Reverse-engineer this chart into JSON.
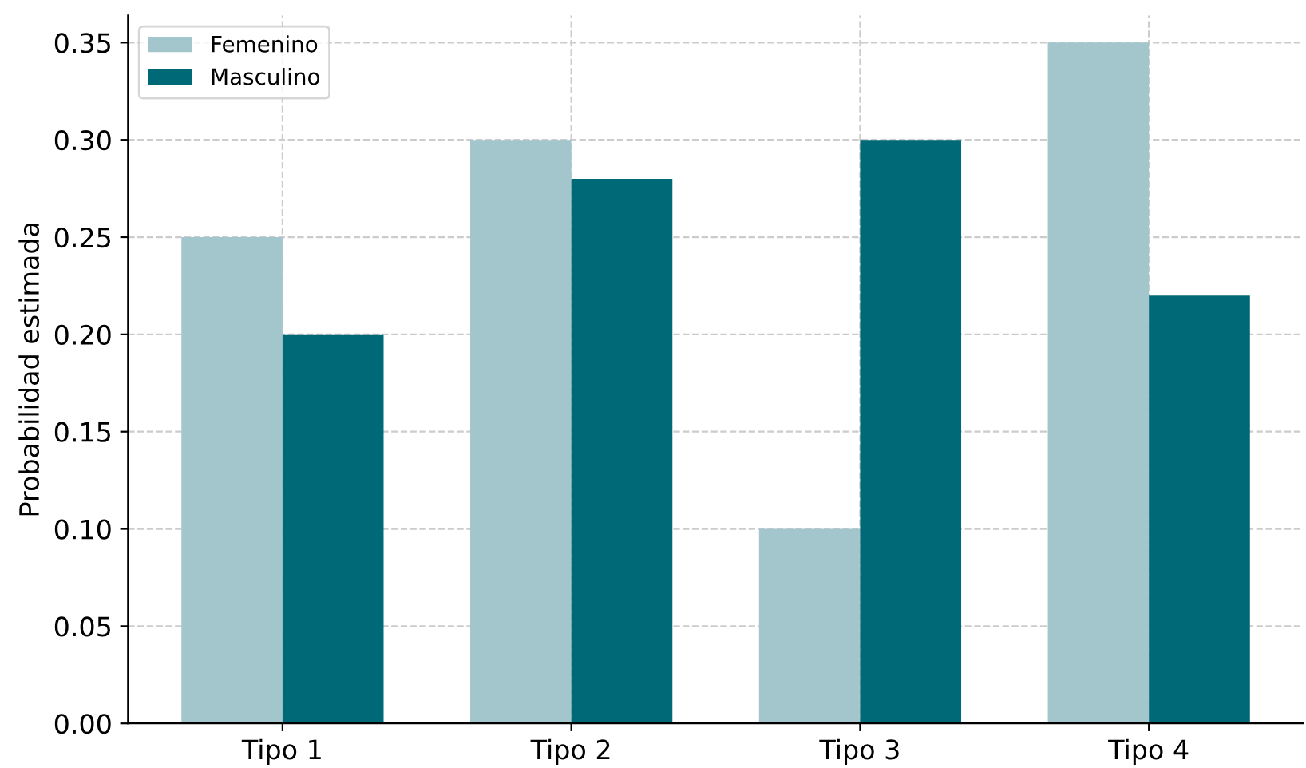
{
  "chart_data": {
    "type": "bar",
    "ylabel": "Probabilidad estimada",
    "categories": [
      "Tipo 1",
      "Tipo 2",
      "Tipo 3",
      "Tipo 4"
    ],
    "series": [
      {
        "name": "Femenino",
        "color": "#a2c6cc",
        "values": [
          0.25,
          0.3,
          0.1,
          0.35
        ]
      },
      {
        "name": "Masculino",
        "color": "#006977",
        "values": [
          0.2,
          0.28,
          0.3,
          0.22
        ]
      }
    ],
    "ylim": [
      0,
      0.364
    ],
    "yticks": [
      {
        "value": 0,
        "label": "0.00"
      },
      {
        "value": 0.05,
        "label": "0.05"
      },
      {
        "value": 0.1,
        "label": "0.10"
      },
      {
        "value": 0.15,
        "label": "0.15"
      },
      {
        "value": 0.2,
        "label": "0.20"
      },
      {
        "value": 0.25,
        "label": "0.25"
      },
      {
        "value": 0.3,
        "label": "0.30"
      },
      {
        "value": 0.35,
        "label": "0.35"
      }
    ],
    "grid": true,
    "legend": "top left"
  }
}
